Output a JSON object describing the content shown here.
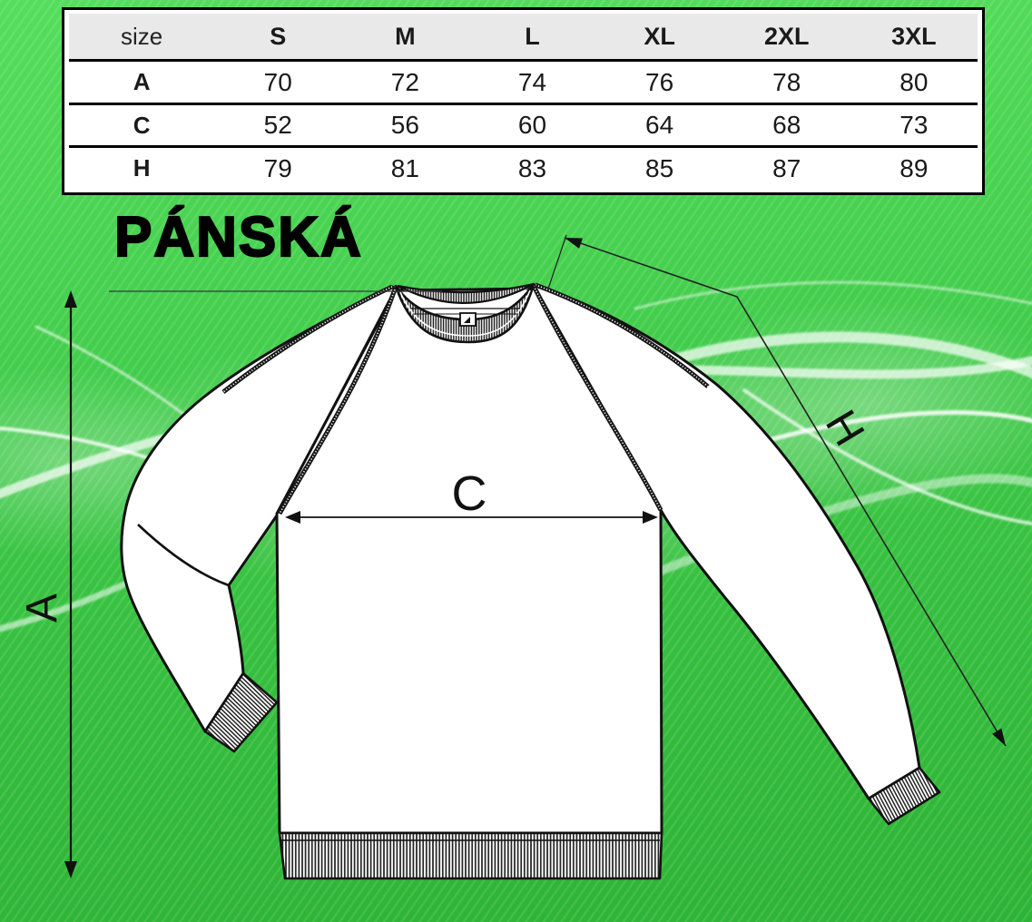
{
  "title": "PÁNSKÁ",
  "size_table": {
    "header": [
      "size",
      "S",
      "M",
      "L",
      "XL",
      "2XL",
      "3XL"
    ],
    "rows": [
      {
        "label": "A",
        "values": [
          "70",
          "72",
          "74",
          "76",
          "78",
          "80"
        ]
      },
      {
        "label": "C",
        "values": [
          "52",
          "56",
          "60",
          "64",
          "68",
          "73"
        ]
      },
      {
        "label": "H",
        "values": [
          "79",
          "81",
          "83",
          "85",
          "87",
          "89"
        ]
      }
    ]
  },
  "diagram": {
    "label_a": "A",
    "label_c": "C",
    "label_h": "H"
  },
  "colors": {
    "background_green_top": "#4fdc58",
    "background_green_bottom": "#2db335",
    "table_header_bg": "#e9e9e9",
    "line_ink": "#111111"
  }
}
